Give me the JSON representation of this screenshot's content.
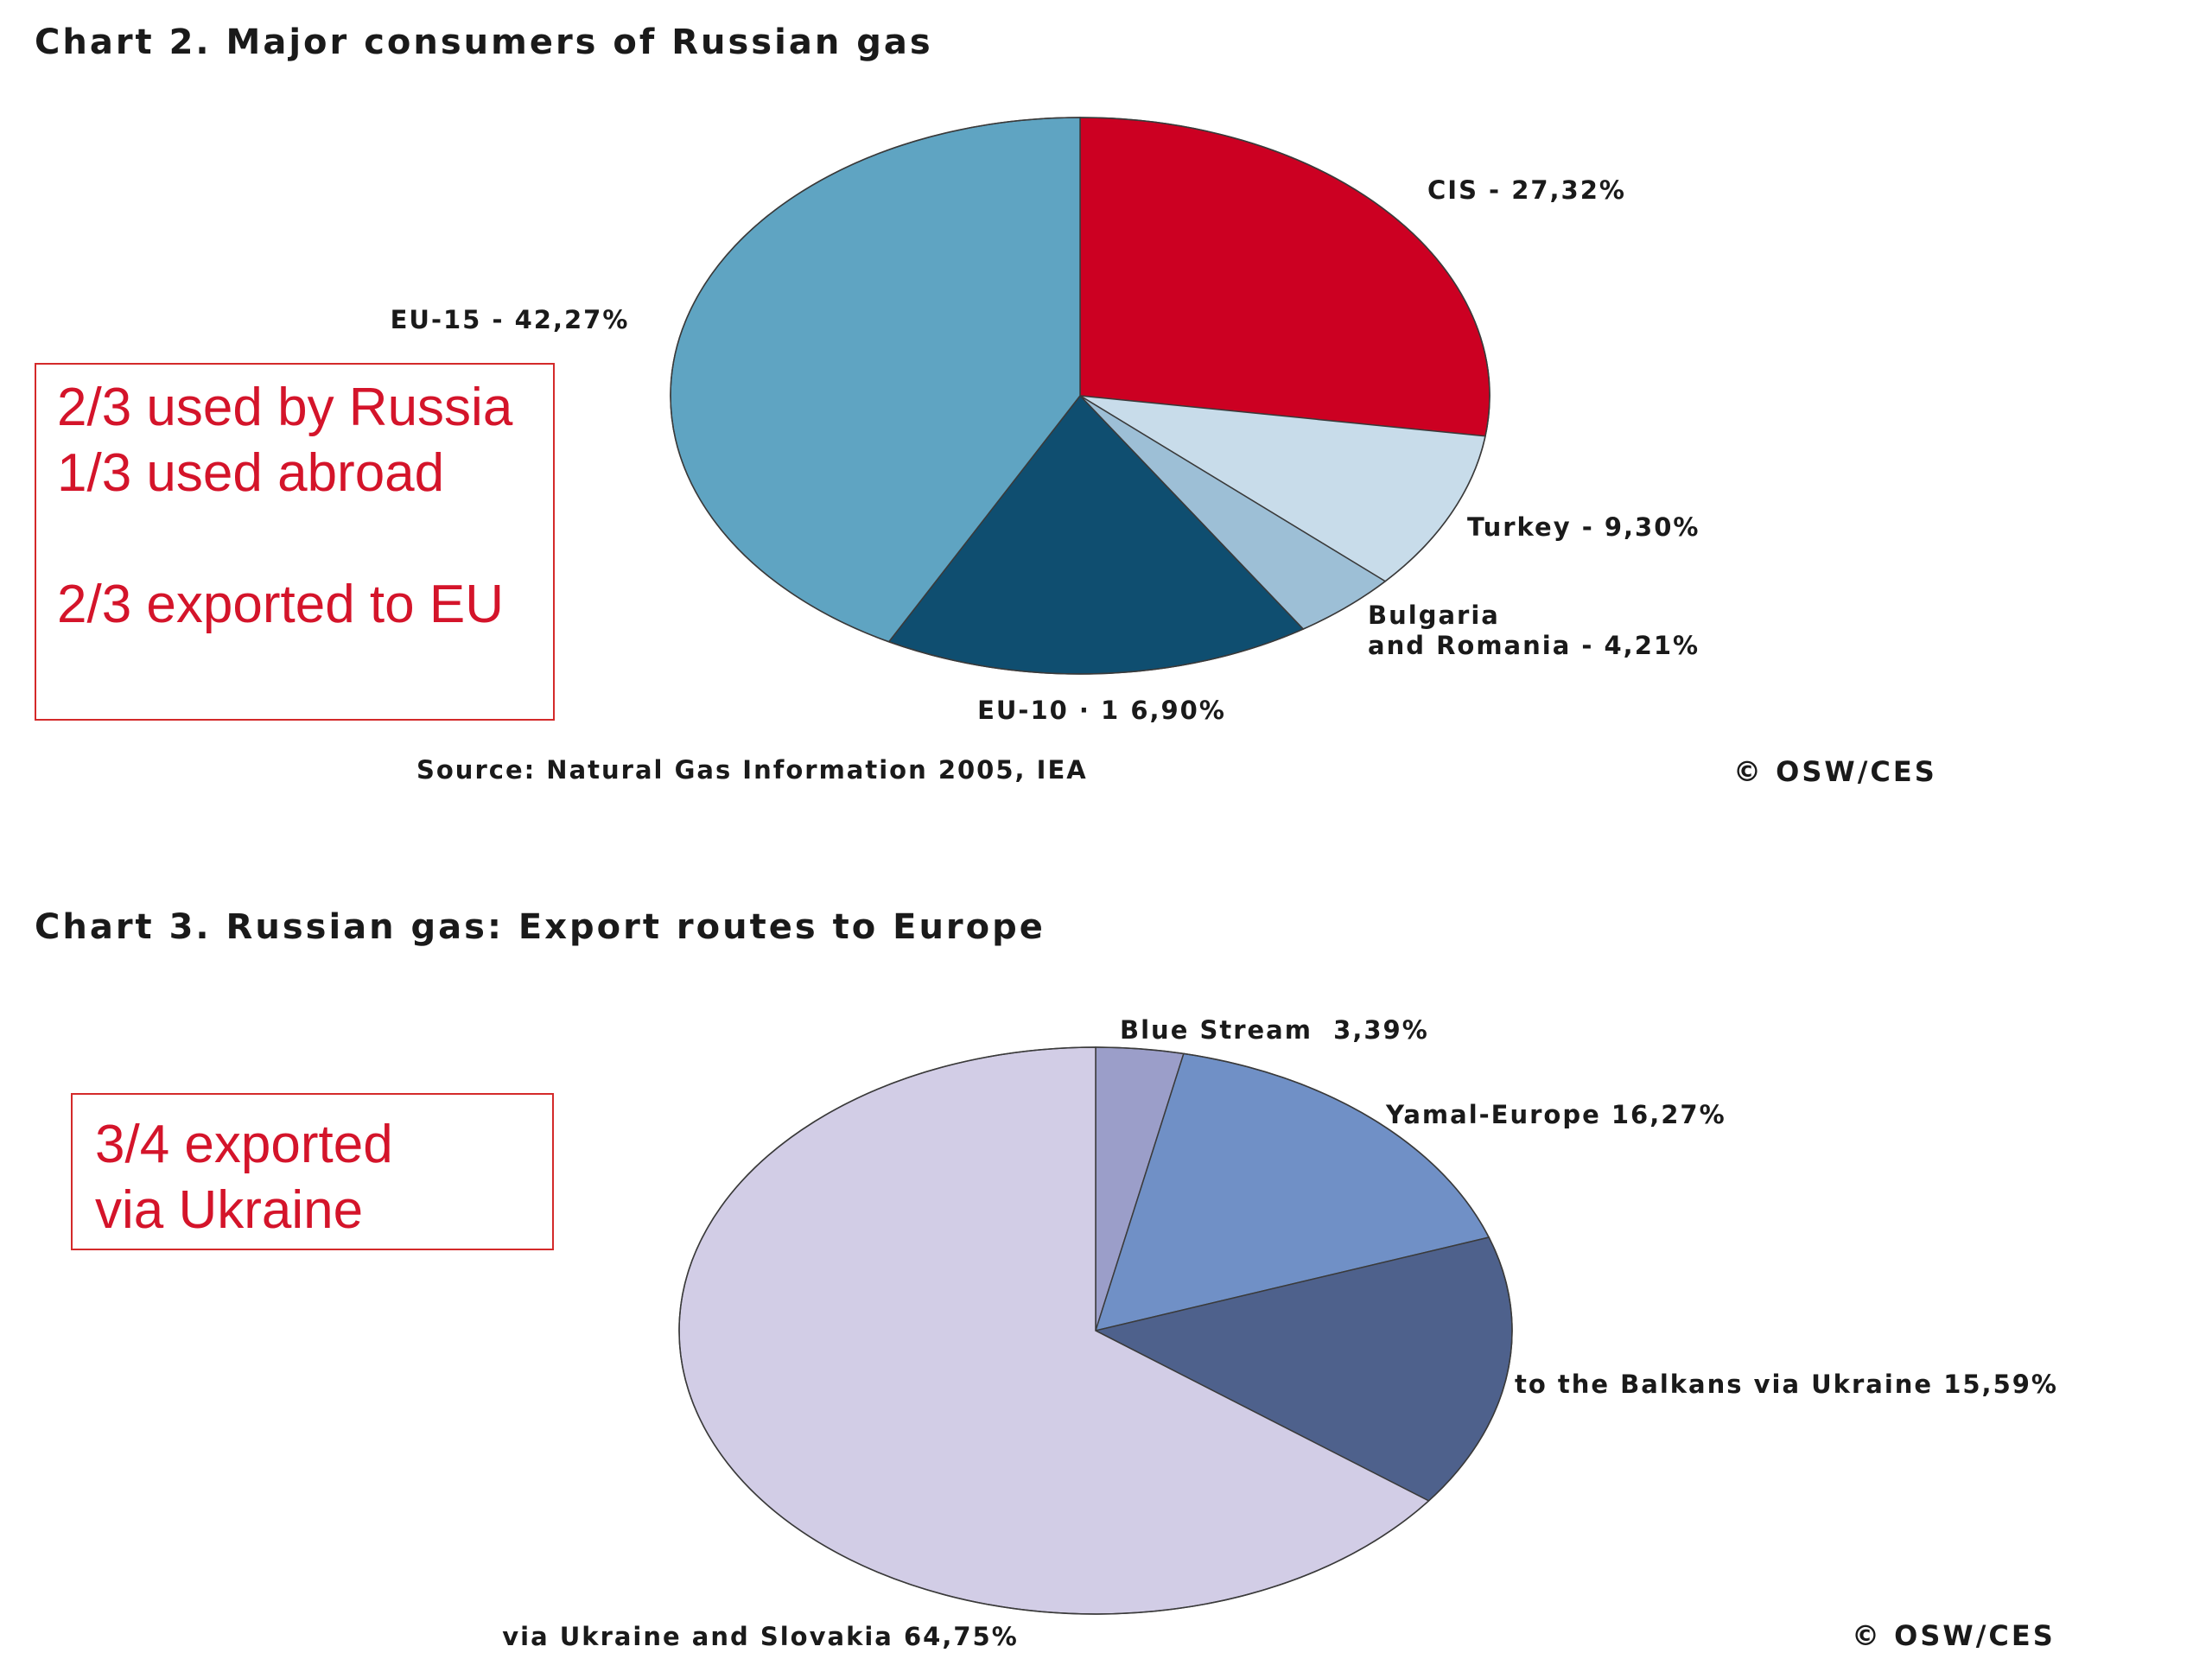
{
  "chart_data": [
    {
      "type": "pie",
      "title": "Chart 2. Major consumers of Russian gas",
      "slices": [
        {
          "label": "CIS - 27,32%",
          "value": 27.32,
          "color": "#cc0022"
        },
        {
          "label": "Turkey - 9,30%",
          "value": 9.3,
          "color": "#c8dcea"
        },
        {
          "label": [
            "Bulgaria",
            "and Romania - 4,21%"
          ],
          "value": 4.21,
          "color": "#9dbfd6"
        },
        {
          "label": "EU-10 · 1 6,90%",
          "value": 16.9,
          "color": "#0f4e70"
        },
        {
          "label": "EU-15 - 42,27%",
          "value": 42.27,
          "color": "#5fa4c2"
        }
      ],
      "source": "Source: Natural Gas Information 2005, IEA",
      "copyright": "© OSW/CES"
    },
    {
      "type": "pie",
      "title": "Chart 3. Russian gas: Export routes to Europe",
      "slices": [
        {
          "label": "Blue Stream  3,39%",
          "value": 3.39,
          "color": "#9b9ec9"
        },
        {
          "label": "Yamal-Europe 16,27%",
          "value": 16.27,
          "color": "#7090c6"
        },
        {
          "label": "to the Balkans via Ukraine 15,59%",
          "value": 15.59,
          "color": "#4e618c"
        },
        {
          "label": "via Ukraine and Slovakia 64,75%",
          "value": 64.75,
          "color": "#d2cde6"
        }
      ],
      "copyright": "© OSW/CES"
    }
  ],
  "notes": {
    "note1": [
      "2/3 used by Russia",
      "1/3 used abroad",
      "",
      "2/3 exported to EU"
    ],
    "note2": [
      "3/4 exported",
      "via Ukraine"
    ]
  }
}
